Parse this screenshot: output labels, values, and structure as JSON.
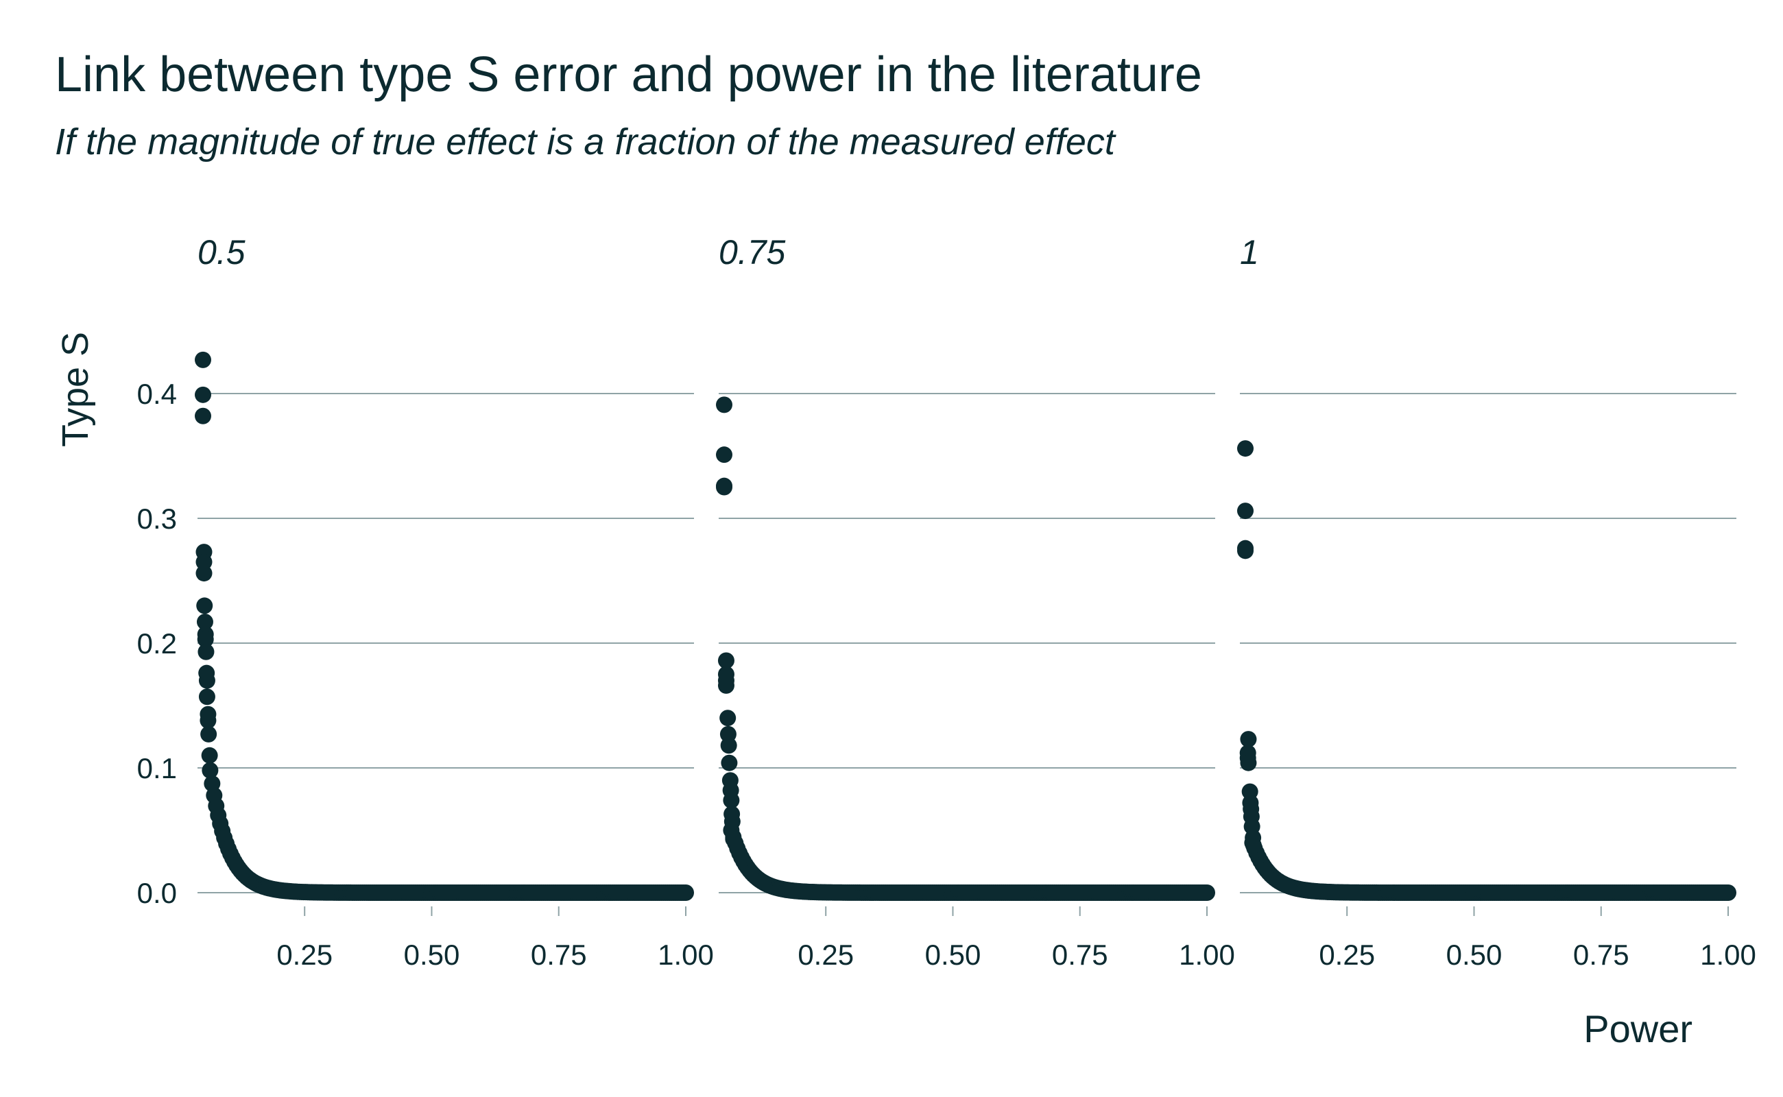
{
  "chart_data": {
    "type": "scatter",
    "title": "Link between type S error and power in the literature",
    "subtitle": "If the magnitude of true effect is a fraction of the measured effect",
    "xlabel": "Power",
    "ylabel": "Type S",
    "xlim": [
      0.0,
      1.0
    ],
    "ylim": [
      0.0,
      0.45
    ],
    "x_ticks": [
      "0.25",
      "0.50",
      "0.75",
      "1.00"
    ],
    "y_ticks": [
      "0.0",
      "0.1",
      "0.2",
      "0.3",
      "0.4"
    ],
    "grid": "horizontal",
    "point_color": "#0c2a30",
    "grid_color": "#8fa3a6",
    "facets": [
      {
        "label": "0.5",
        "min_power": 0.05,
        "points": [
          [
            0.05,
            0.427
          ],
          [
            0.05,
            0.399
          ],
          [
            0.05,
            0.382
          ],
          [
            0.052,
            0.273
          ],
          [
            0.052,
            0.265
          ],
          [
            0.052,
            0.256
          ],
          [
            0.053,
            0.23
          ],
          [
            0.054,
            0.217
          ],
          [
            0.055,
            0.207
          ],
          [
            0.055,
            0.203
          ],
          [
            0.056,
            0.193
          ],
          [
            0.057,
            0.176
          ],
          [
            0.058,
            0.17
          ],
          [
            0.058,
            0.157
          ],
          [
            0.06,
            0.143
          ],
          [
            0.06,
            0.138
          ],
          [
            0.061,
            0.127
          ],
          [
            0.063,
            0.11
          ]
        ]
      },
      {
        "label": "0.75",
        "min_power": 0.05,
        "points": [
          [
            0.05,
            0.391
          ],
          [
            0.05,
            0.351
          ],
          [
            0.05,
            0.326
          ],
          [
            0.05,
            0.325
          ],
          [
            0.054,
            0.186
          ],
          [
            0.054,
            0.175
          ],
          [
            0.054,
            0.17
          ],
          [
            0.054,
            0.166
          ],
          [
            0.057,
            0.14
          ],
          [
            0.058,
            0.127
          ],
          [
            0.059,
            0.118
          ],
          [
            0.06,
            0.104
          ],
          [
            0.062,
            0.09
          ],
          [
            0.063,
            0.082
          ],
          [
            0.064,
            0.074
          ],
          [
            0.065,
            0.063
          ],
          [
            0.066,
            0.057
          ],
          [
            0.068,
            0.043
          ]
        ]
      },
      {
        "label": "1",
        "min_power": 0.05,
        "points": [
          [
            0.05,
            0.356
          ],
          [
            0.05,
            0.306
          ],
          [
            0.05,
            0.276
          ],
          [
            0.05,
            0.274
          ],
          [
            0.056,
            0.123
          ],
          [
            0.055,
            0.112
          ],
          [
            0.055,
            0.108
          ],
          [
            0.056,
            0.104
          ],
          [
            0.059,
            0.081
          ],
          [
            0.06,
            0.072
          ],
          [
            0.061,
            0.067
          ],
          [
            0.062,
            0.061
          ],
          [
            0.063,
            0.053
          ],
          [
            0.065,
            0.044
          ],
          [
            0.066,
            0.038
          ]
        ]
      }
    ]
  }
}
